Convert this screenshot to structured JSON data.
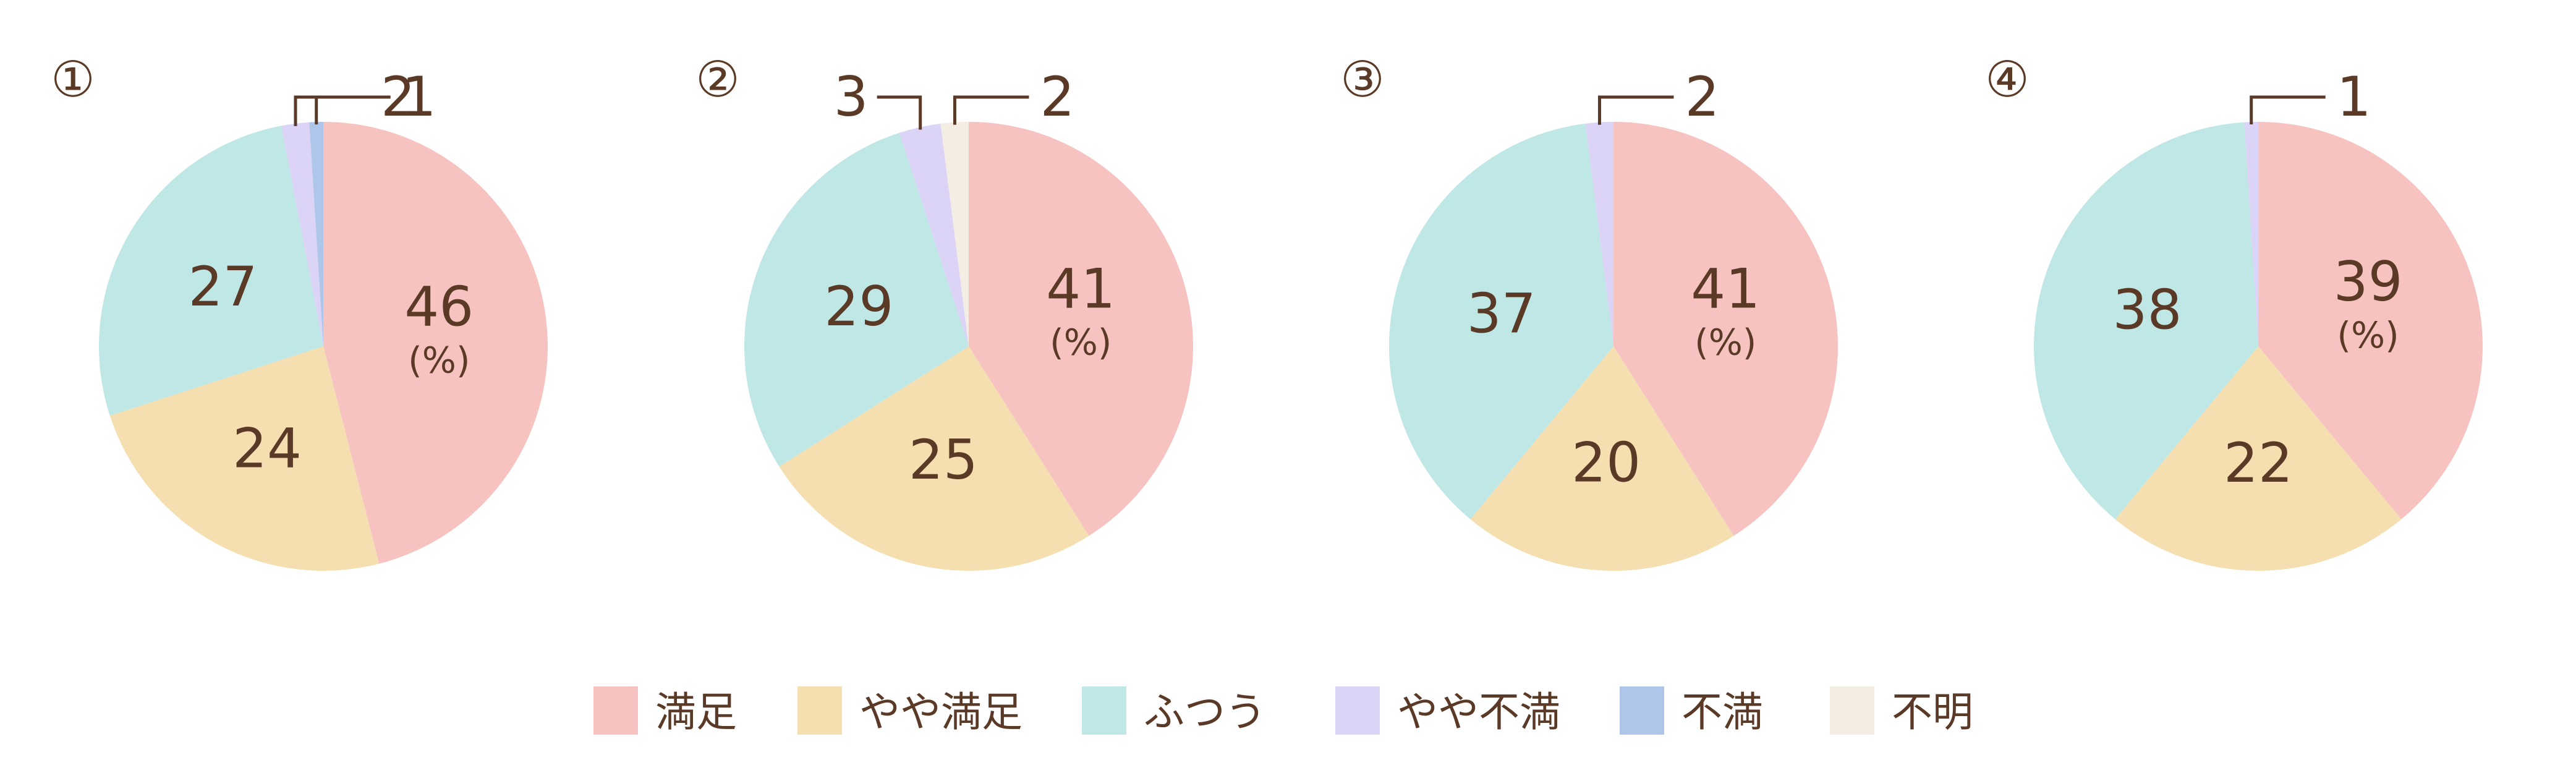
{
  "colors": {
    "満足": "#f7c3c1",
    "やや満足": "#f5dfb1",
    "ふつう": "#bfe7e5",
    "やや不満": "#dcd4f7",
    "不満": "#adc6ea",
    "不明": "#f4ede3",
    "text": "#5a3a26"
  },
  "legend": [
    "満足",
    "やや満足",
    "ふつう",
    "やや不満",
    "不満",
    "不明"
  ],
  "chart_data": [
    {
      "type": "pie",
      "label": "①",
      "unit_label": "(%)",
      "slices": [
        {
          "category": "満足",
          "value": 46
        },
        {
          "category": "やや満足",
          "value": 24
        },
        {
          "category": "ふつう",
          "value": 27
        },
        {
          "category": "やや不満",
          "value": 2
        },
        {
          "category": "不満",
          "value": 1
        }
      ]
    },
    {
      "type": "pie",
      "label": "②",
      "unit_label": "(%)",
      "slices": [
        {
          "category": "満足",
          "value": 41
        },
        {
          "category": "やや満足",
          "value": 25
        },
        {
          "category": "ふつう",
          "value": 29
        },
        {
          "category": "やや不満",
          "value": 3
        },
        {
          "category": "不明",
          "value": 2
        }
      ]
    },
    {
      "type": "pie",
      "label": "③",
      "unit_label": "(%)",
      "slices": [
        {
          "category": "満足",
          "value": 41
        },
        {
          "category": "やや満足",
          "value": 20
        },
        {
          "category": "ふつう",
          "value": 37
        },
        {
          "category": "やや不満",
          "value": 2
        }
      ]
    },
    {
      "type": "pie",
      "label": "④",
      "unit_label": "(%)",
      "slices": [
        {
          "category": "満足",
          "value": 39
        },
        {
          "category": "やや満足",
          "value": 22
        },
        {
          "category": "ふつう",
          "value": 38
        },
        {
          "category": "やや不満",
          "value": 1
        }
      ]
    }
  ]
}
